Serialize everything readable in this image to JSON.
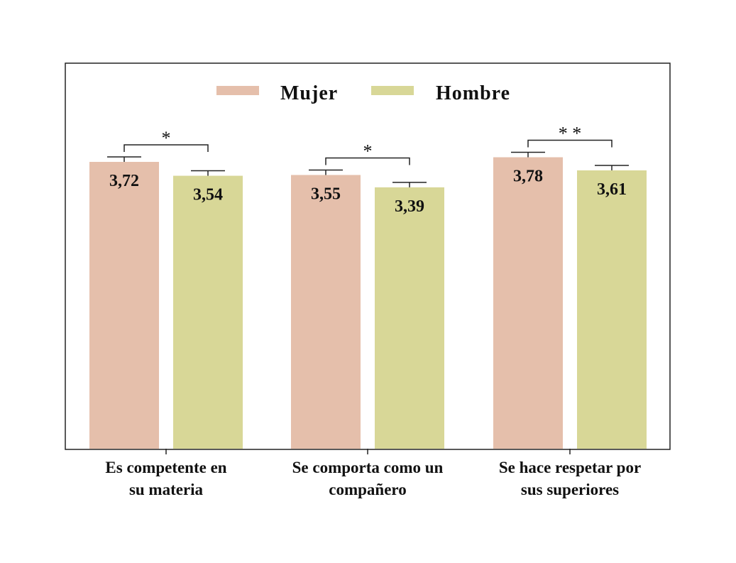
{
  "chart_data": {
    "type": "bar",
    "categories": [
      [
        "Es competente en",
        "su materia"
      ],
      [
        "Se comporta como un",
        "compañero"
      ],
      [
        "Se hace respetar por",
        "sus superiores"
      ]
    ],
    "series": [
      {
        "name": "Mujer",
        "color": "#e5bfab",
        "values": [
          3.72,
          3.55,
          3.78
        ],
        "value_labels": [
          "3,72",
          "3,55",
          "3,78"
        ]
      },
      {
        "name": "Hombre",
        "color": "#d8d797",
        "values": [
          3.54,
          3.39,
          3.61
        ],
        "value_labels": [
          "3,54",
          "3,39",
          "3,61"
        ]
      }
    ],
    "error_bars": true,
    "significance": [
      "*",
      "*",
      "* *"
    ],
    "legend_position": "top-center",
    "grid": false,
    "ylim": [
      0,
      4.5
    ]
  }
}
